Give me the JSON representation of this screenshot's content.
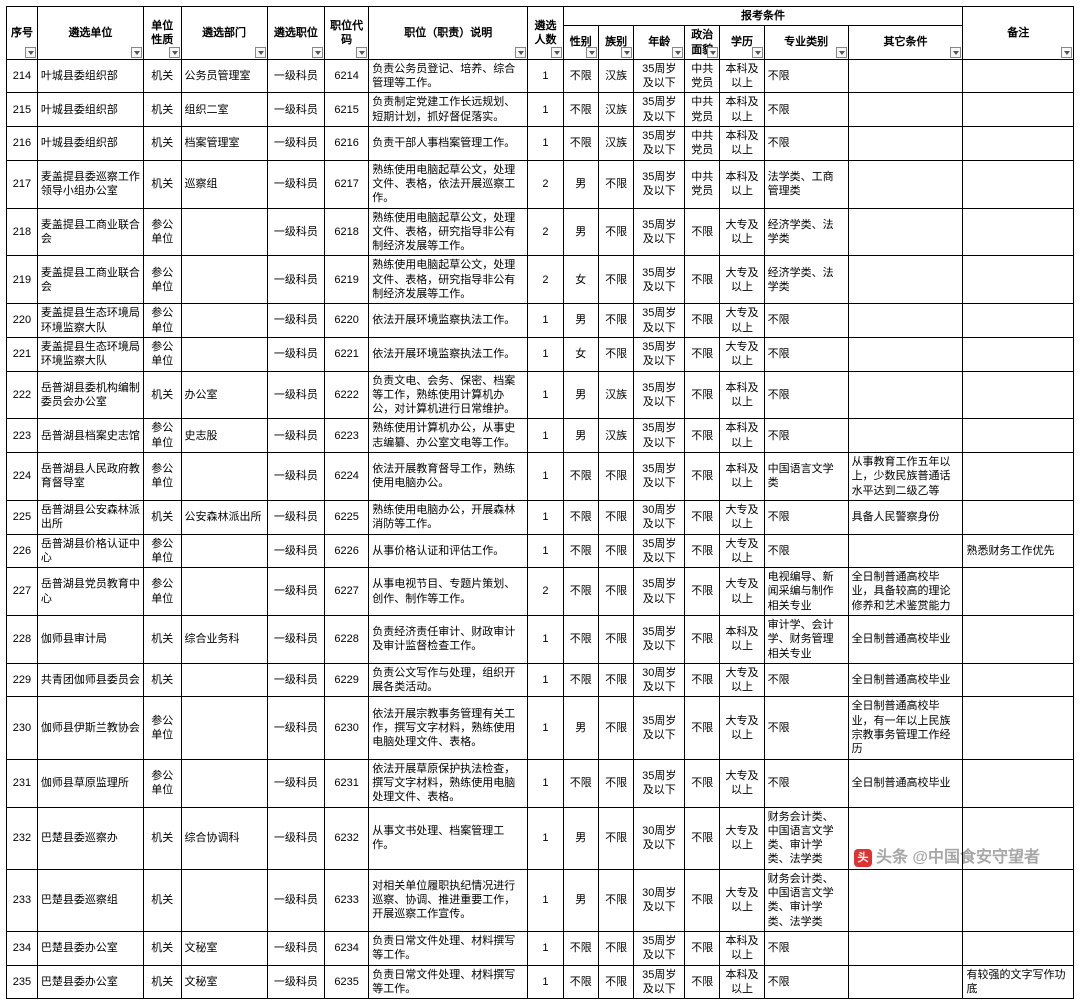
{
  "headers": {
    "seq": "序号",
    "unit": "遴选单位",
    "type": "单位性质",
    "dept": "遴选部门",
    "job": "遴选职位",
    "code": "职位代码",
    "desc": "职位（职责）说明",
    "num": "遴选人数",
    "cond_group": "报考条件",
    "sex": "性别",
    "eth": "族别",
    "age": "年龄",
    "pol": "政治面貌",
    "edu": "学历",
    "major": "专业类别",
    "other": "其它条件",
    "note": "备注"
  },
  "rows": [
    {
      "seq": "214",
      "unit": "叶城县委组织部",
      "type": "机关",
      "dept": "公务员管理室",
      "job": "一级科员",
      "code": "6214",
      "desc": "负责公务员登记、培养、综合管理等工作。",
      "num": "1",
      "sex": "不限",
      "eth": "汉族",
      "age": "35周岁及以下",
      "pol": "中共党员",
      "edu": "本科及以上",
      "major": "不限",
      "other": "",
      "note": ""
    },
    {
      "seq": "215",
      "unit": "叶城县委组织部",
      "type": "机关",
      "dept": "组织二室",
      "job": "一级科员",
      "code": "6215",
      "desc": "负责制定党建工作长远规划、短期计划，抓好督促落实。",
      "num": "1",
      "sex": "不限",
      "eth": "汉族",
      "age": "35周岁及以下",
      "pol": "中共党员",
      "edu": "本科及以上",
      "major": "不限",
      "other": "",
      "note": ""
    },
    {
      "seq": "216",
      "unit": "叶城县委组织部",
      "type": "机关",
      "dept": "档案管理室",
      "job": "一级科员",
      "code": "6216",
      "desc": "负责干部人事档案管理工作。",
      "num": "1",
      "sex": "不限",
      "eth": "汉族",
      "age": "35周岁及以下",
      "pol": "中共党员",
      "edu": "本科及以上",
      "major": "不限",
      "other": "",
      "note": ""
    },
    {
      "seq": "217",
      "unit": "麦盖提县委巡察工作领导小组办公室",
      "type": "机关",
      "dept": "巡察组",
      "job": "一级科员",
      "code": "6217",
      "desc": "熟练使用电脑起草公文，处理文件、表格，依法开展巡察工作。",
      "num": "2",
      "sex": "男",
      "eth": "不限",
      "age": "35周岁及以下",
      "pol": "中共党员",
      "edu": "本科及以上",
      "major": "法学类、工商管理类",
      "other": "",
      "note": ""
    },
    {
      "seq": "218",
      "unit": "麦盖提县工商业联合会",
      "type": "参公单位",
      "dept": "",
      "job": "一级科员",
      "code": "6218",
      "desc": "熟练使用电脑起草公文，处理文件、表格，研究指导非公有制经济发展等工作。",
      "num": "2",
      "sex": "男",
      "eth": "不限",
      "age": "35周岁及以下",
      "pol": "不限",
      "edu": "大专及以上",
      "major": "经济学类、法学类",
      "other": "",
      "note": ""
    },
    {
      "seq": "219",
      "unit": "麦盖提县工商业联合会",
      "type": "参公单位",
      "dept": "",
      "job": "一级科员",
      "code": "6219",
      "desc": "熟练使用电脑起草公文，处理文件、表格，研究指导非公有制经济发展等工作。",
      "num": "2",
      "sex": "女",
      "eth": "不限",
      "age": "35周岁及以下",
      "pol": "不限",
      "edu": "大专及以上",
      "major": "经济学类、法学类",
      "other": "",
      "note": ""
    },
    {
      "seq": "220",
      "unit": "麦盖提县生态环境局环境监察大队",
      "type": "参公单位",
      "dept": "",
      "job": "一级科员",
      "code": "6220",
      "desc": "依法开展环境监察执法工作。",
      "num": "1",
      "sex": "男",
      "eth": "不限",
      "age": "35周岁及以下",
      "pol": "不限",
      "edu": "大专及以上",
      "major": "不限",
      "other": "",
      "note": ""
    },
    {
      "seq": "221",
      "unit": "麦盖提县生态环境局环境监察大队",
      "type": "参公单位",
      "dept": "",
      "job": "一级科员",
      "code": "6221",
      "desc": "依法开展环境监察执法工作。",
      "num": "1",
      "sex": "女",
      "eth": "不限",
      "age": "35周岁及以下",
      "pol": "不限",
      "edu": "大专及以上",
      "major": "不限",
      "other": "",
      "note": ""
    },
    {
      "seq": "222",
      "unit": "岳普湖县委机构编制委员会办公室",
      "type": "机关",
      "dept": "办公室",
      "job": "一级科员",
      "code": "6222",
      "desc": "负责文电、会务、保密、档案等工作，熟练使用计算机办公，对计算机进行日常维护。",
      "num": "1",
      "sex": "男",
      "eth": "汉族",
      "age": "35周岁及以下",
      "pol": "不限",
      "edu": "本科及以上",
      "major": "不限",
      "other": "",
      "note": ""
    },
    {
      "seq": "223",
      "unit": "岳普湖县档案史志馆",
      "type": "参公单位",
      "dept": "史志股",
      "job": "一级科员",
      "code": "6223",
      "desc": "熟练使用计算机办公，从事史志编纂、办公室文电等工作。",
      "num": "1",
      "sex": "男",
      "eth": "汉族",
      "age": "35周岁及以下",
      "pol": "不限",
      "edu": "本科及以上",
      "major": "不限",
      "other": "",
      "note": ""
    },
    {
      "seq": "224",
      "unit": "岳普湖县人民政府教育督导室",
      "type": "参公单位",
      "dept": "",
      "job": "一级科员",
      "code": "6224",
      "desc": "依法开展教育督导工作，熟练使用电脑办公。",
      "num": "1",
      "sex": "不限",
      "eth": "不限",
      "age": "35周岁及以下",
      "pol": "不限",
      "edu": "本科及以上",
      "major": "中国语言文学类",
      "other": "从事教育工作五年以上，少数民族普通话水平达到二级乙等",
      "note": ""
    },
    {
      "seq": "225",
      "unit": "岳普湖县公安森林派出所",
      "type": "机关",
      "dept": "公安森林派出所",
      "job": "一级科员",
      "code": "6225",
      "desc": "熟练使用电脑办公，开展森林消防等工作。",
      "num": "1",
      "sex": "不限",
      "eth": "不限",
      "age": "30周岁及以下",
      "pol": "不限",
      "edu": "大专及以上",
      "major": "不限",
      "other": "具备人民警察身份",
      "note": ""
    },
    {
      "seq": "226",
      "unit": "岳普湖县价格认证中心",
      "type": "参公单位",
      "dept": "",
      "job": "一级科员",
      "code": "6226",
      "desc": "从事价格认证和评估工作。",
      "num": "1",
      "sex": "不限",
      "eth": "不限",
      "age": "35周岁及以下",
      "pol": "不限",
      "edu": "大专及以上",
      "major": "不限",
      "other": "",
      "note": "熟悉财务工作优先"
    },
    {
      "seq": "227",
      "unit": "岳普湖县党员教育中心",
      "type": "参公单位",
      "dept": "",
      "job": "一级科员",
      "code": "6227",
      "desc": "从事电视节目、专题片策划、创作、制作等工作。",
      "num": "2",
      "sex": "不限",
      "eth": "不限",
      "age": "35周岁及以下",
      "pol": "不限",
      "edu": "大专及以上",
      "major": "电视编导、新闻采编与制作相关专业",
      "other": "全日制普通高校毕业，具备较高的理论修养和艺术鉴赏能力",
      "note": ""
    },
    {
      "seq": "228",
      "unit": "伽师县审计局",
      "type": "机关",
      "dept": "综合业务科",
      "job": "一级科员",
      "code": "6228",
      "desc": "负责经济责任审计、财政审计及审计监督检查工作。",
      "num": "1",
      "sex": "不限",
      "eth": "不限",
      "age": "35周岁及以下",
      "pol": "不限",
      "edu": "本科及以上",
      "major": "审计学、会计学、财务管理相关专业",
      "other": "全日制普通高校毕业",
      "note": ""
    },
    {
      "seq": "229",
      "unit": "共青团伽师县委员会",
      "type": "机关",
      "dept": "",
      "job": "一级科员",
      "code": "6229",
      "desc": "负责公文写作与处理，组织开展各类活动。",
      "num": "1",
      "sex": "不限",
      "eth": "不限",
      "age": "30周岁及以下",
      "pol": "不限",
      "edu": "大专及以上",
      "major": "不限",
      "other": "全日制普通高校毕业",
      "note": ""
    },
    {
      "seq": "230",
      "unit": "伽师县伊斯兰教协会",
      "type": "参公单位",
      "dept": "",
      "job": "一级科员",
      "code": "6230",
      "desc": "依法开展宗教事务管理有关工作，撰写文字材料，熟练使用电脑处理文件、表格。",
      "num": "1",
      "sex": "男",
      "eth": "不限",
      "age": "35周岁及以下",
      "pol": "不限",
      "edu": "大专及以上",
      "major": "不限",
      "other": "全日制普通高校毕业，有一年以上民族宗教事务管理工作经历",
      "note": ""
    },
    {
      "seq": "231",
      "unit": "伽师县草原监理所",
      "type": "参公单位",
      "dept": "",
      "job": "一级科员",
      "code": "6231",
      "desc": "依法开展草原保护执法检查，撰写文字材料，熟练使用电脑处理文件、表格。",
      "num": "1",
      "sex": "不限",
      "eth": "不限",
      "age": "35周岁及以下",
      "pol": "不限",
      "edu": "大专及以上",
      "major": "不限",
      "other": "全日制普通高校毕业",
      "note": ""
    },
    {
      "seq": "232",
      "unit": "巴楚县委巡察办",
      "type": "机关",
      "dept": "综合协调科",
      "job": "一级科员",
      "code": "6232",
      "desc": "从事文书处理、档案管理工作。",
      "num": "1",
      "sex": "男",
      "eth": "不限",
      "age": "30周岁及以下",
      "pol": "不限",
      "edu": "大专及以上",
      "major": "财务会计类、中国语言文学类、审计学类、法学类",
      "other": "",
      "note": ""
    },
    {
      "seq": "233",
      "unit": "巴楚县委巡察组",
      "type": "机关",
      "dept": "",
      "job": "一级科员",
      "code": "6233",
      "desc": "对相关单位履职执纪情况进行巡察、协调、推进重要工作，开展巡察工作宣传。",
      "num": "1",
      "sex": "男",
      "eth": "不限",
      "age": "30周岁及以下",
      "pol": "不限",
      "edu": "大专及以上",
      "major": "财务会计类、中国语言文学类、审计学类、法学类",
      "other": "",
      "note": ""
    },
    {
      "seq": "234",
      "unit": "巴楚县委办公室",
      "type": "机关",
      "dept": "文秘室",
      "job": "一级科员",
      "code": "6234",
      "desc": "负责日常文件处理、材料撰写等工作。",
      "num": "1",
      "sex": "不限",
      "eth": "不限",
      "age": "35周岁及以下",
      "pol": "不限",
      "edu": "本科及以上",
      "major": "不限",
      "other": "",
      "note": ""
    },
    {
      "seq": "235",
      "unit": "巴楚县委办公室",
      "type": "机关",
      "dept": "文秘室",
      "job": "一级科员",
      "code": "6235",
      "desc": "负责日常文件处理、材料撰写等工作。",
      "num": "1",
      "sex": "不限",
      "eth": "不限",
      "age": "35周岁及以下",
      "pol": "不限",
      "edu": "本科及以上",
      "major": "不限",
      "other": "",
      "note": "有较强的文字写作功底"
    }
  ],
  "watermark": {
    "logo": "头",
    "text": "头条 @中国食安守望者"
  }
}
